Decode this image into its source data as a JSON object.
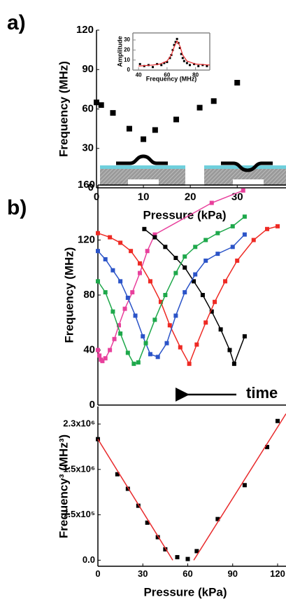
{
  "chart_data": [
    {
      "type": "scatter",
      "panel_label": "a)",
      "x_label": "Pressure (kPa)",
      "y_label": "Frequency (MHz)",
      "x": [
        0,
        1,
        3.5,
        7,
        10,
        12.5,
        17,
        22,
        25,
        30
      ],
      "values": [
        65,
        63,
        57,
        45,
        37,
        44,
        52,
        61,
        66,
        80
      ],
      "color": "#000000",
      "xlim": [
        0,
        40.4
      ],
      "ylim": [
        0,
        120
      ],
      "xticks": [
        0,
        10,
        20,
        30
      ],
      "yticks": [
        0,
        30,
        60,
        90,
        120
      ]
    },
    {
      "type": "scatter",
      "x_label": "Frequency (MHz)",
      "y_label": "Amplitude",
      "series": [
        {
          "mode": "markers",
          "color": "#000000",
          "x": [
            41,
            44,
            47,
            50,
            53,
            56,
            58,
            60,
            62,
            63,
            64,
            65,
            66,
            67,
            68,
            69,
            70,
            71,
            72,
            74,
            76,
            79,
            82,
            85,
            88
          ],
          "values": [
            6,
            4,
            5,
            3,
            6,
            5,
            7,
            8,
            12,
            15,
            20,
            25,
            28,
            31,
            27,
            22,
            16,
            12,
            9,
            7,
            5,
            6,
            4,
            5,
            4
          ]
        },
        {
          "mode": "line",
          "color": "#e8292b",
          "x": [
            40,
            50,
            55,
            60,
            63,
            65,
            67,
            69,
            71,
            74,
            80,
            90
          ],
          "values": [
            4,
            5,
            6,
            9,
            15,
            23,
            29,
            24,
            15,
            9,
            6,
            5
          ]
        }
      ],
      "xlim": [
        36,
        90
      ],
      "ylim": [
        0,
        37
      ],
      "xticks": [
        40,
        60,
        80
      ],
      "yticks": [
        0,
        10,
        20,
        30
      ]
    },
    {
      "type": "line",
      "panel_label": "b)",
      "y_label": "Frequency (MHz)",
      "annotation": "time",
      "series": [
        {
          "mode": "line+markers",
          "color": "#e8409c",
          "x": [
            0,
            1,
            2,
            3,
            5,
            8,
            11,
            14,
            18,
            23,
            28,
            33,
            38,
            76,
            97
          ],
          "values": [
            40,
            36,
            33,
            32,
            34,
            40,
            48,
            58,
            70,
            82,
            96,
            112,
            124,
            147,
            156
          ]
        },
        {
          "mode": "line+markers",
          "color": "#000000",
          "x": [
            31,
            38,
            45,
            52,
            58,
            64,
            70,
            76,
            82,
            88,
            91,
            98
          ],
          "values": [
            128,
            122,
            115,
            107,
            100,
            90,
            80,
            68,
            55,
            40,
            30,
            50
          ]
        },
        {
          "mode": "line+markers",
          "color": "#ee2a24",
          "x": [
            0,
            8,
            15,
            22,
            28,
            35,
            42,
            48,
            55,
            61,
            66,
            72,
            78,
            85,
            93,
            104,
            113,
            120
          ],
          "values": [
            125,
            122,
            118,
            112,
            103,
            90,
            75,
            58,
            42,
            30,
            44,
            60,
            75,
            90,
            105,
            120,
            128,
            130
          ]
        },
        {
          "mode": "line+markers",
          "color": "#2b54c8",
          "x": [
            0,
            5,
            10,
            15,
            20,
            25,
            30,
            35,
            40,
            46,
            52,
            58,
            65,
            72,
            80,
            90,
            98
          ],
          "values": [
            112,
            106,
            98,
            90,
            78,
            65,
            50,
            37,
            35,
            45,
            65,
            82,
            95,
            105,
            110,
            115,
            124
          ]
        },
        {
          "mode": "line+markers",
          "color": "#1ea84b",
          "x": [
            0,
            5,
            10,
            15,
            20,
            24,
            27,
            32,
            38,
            45,
            52,
            58,
            65,
            72,
            80,
            90,
            98
          ],
          "values": [
            90,
            82,
            68,
            52,
            38,
            30,
            31,
            45,
            62,
            80,
            96,
            108,
            115,
            120,
            125,
            130,
            137
          ]
        }
      ],
      "xlim": [
        0,
        125.6
      ],
      "ylim": [
        0,
        160
      ],
      "yticks": [
        0,
        40,
        80,
        120,
        160
      ]
    },
    {
      "type": "scatter",
      "x_label": "Pressure (kPa)",
      "y_label": "Frequency³ (MHz³)",
      "series": [
        {
          "mode": "markers",
          "color": "#000000",
          "x": [
            0,
            13,
            20,
            27,
            33,
            40,
            45,
            53,
            60,
            66,
            80,
            98,
            113,
            120
          ],
          "values": [
            2000000,
            1420000,
            1180000,
            900000,
            620000,
            380000,
            180000,
            50000,
            20000,
            150000,
            680000,
            1240000,
            1870000,
            2300000
          ]
        },
        {
          "mode": "line",
          "color": "#e8292b",
          "x": [
            0,
            50
          ],
          "values": [
            2000000,
            0
          ]
        },
        {
          "mode": "line",
          "color": "#e8292b",
          "x": [
            64,
            125.6
          ],
          "values": [
            0,
            2420000
          ]
        }
      ],
      "xlim": [
        0,
        125.6
      ],
      "ylim": [
        -100000,
        2540000
      ],
      "xticks": [
        0,
        30,
        60,
        90,
        120
      ],
      "yticks": [
        {
          "value": 0,
          "label": "0.0"
        },
        {
          "value": 750000,
          "label": "7.5x10⁵"
        },
        {
          "value": 1500000,
          "label": "1.5x10⁶"
        },
        {
          "value": 2250000,
          "label": "2.3x10⁶"
        }
      ]
    }
  ]
}
